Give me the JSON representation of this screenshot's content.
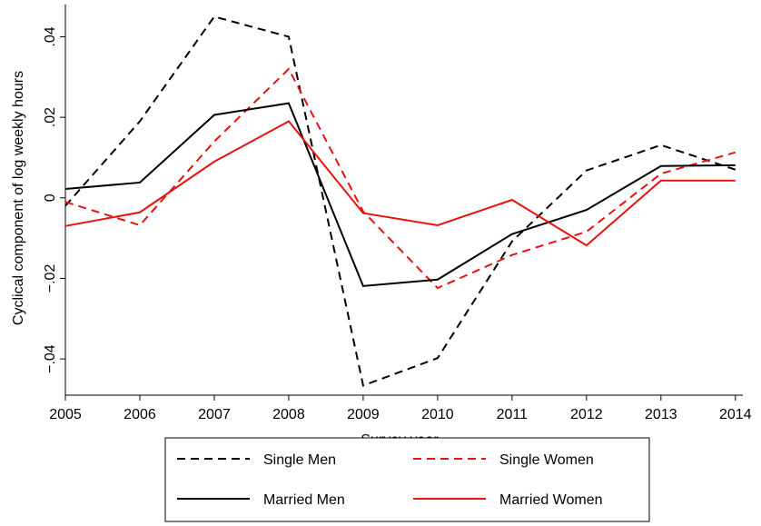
{
  "chart_data": {
    "type": "line",
    "x_label": "Survey year",
    "y_label": "Cyclical component of log weekly hours",
    "x": [
      2005,
      2006,
      2007,
      2008,
      2009,
      2010,
      2011,
      2012,
      2013,
      2014
    ],
    "xlim": [
      2005,
      2014.1
    ],
    "xticks": [
      2005,
      2006,
      2007,
      2008,
      2009,
      2010,
      2011,
      2012,
      2013,
      2014
    ],
    "ylim": [
      -0.049,
      0.048
    ],
    "yticks": [
      {
        "value": -0.04,
        "label": "−.04"
      },
      {
        "value": -0.02,
        "label": "−.02"
      },
      0,
      {
        "value": 0.02,
        "label": ".02"
      },
      {
        "value": 0.04,
        "label": ".04"
      }
    ],
    "grid": false,
    "legend": "bottom",
    "series": [
      {
        "name": "Single Men",
        "color": "#000000",
        "dashed": true,
        "values": [
          -0.002,
          0.019,
          0.045,
          0.04,
          -0.0466,
          -0.0398,
          -0.0108,
          0.0068,
          0.0131,
          0.007
        ]
      },
      {
        "name": "Single Women",
        "color": "#e8120c",
        "dashed": true,
        "values": [
          -0.001,
          -0.0068,
          0.014,
          0.032,
          -0.0034,
          -0.0224,
          -0.0142,
          -0.0084,
          0.006,
          0.0113
        ]
      },
      {
        "name": "Married Men",
        "color": "#000000",
        "dashed": false,
        "values": [
          0.0022,
          0.0038,
          0.0206,
          0.0235,
          -0.0219,
          -0.0203,
          -0.009,
          -0.003,
          0.0079,
          0.0081
        ]
      },
      {
        "name": "Married Women",
        "color": "#e8120c",
        "dashed": false,
        "values": [
          -0.007,
          -0.0036,
          0.009,
          0.019,
          -0.0038,
          -0.0068,
          -0.0005,
          -0.0118,
          0.0043,
          0.0043
        ]
      }
    ]
  }
}
